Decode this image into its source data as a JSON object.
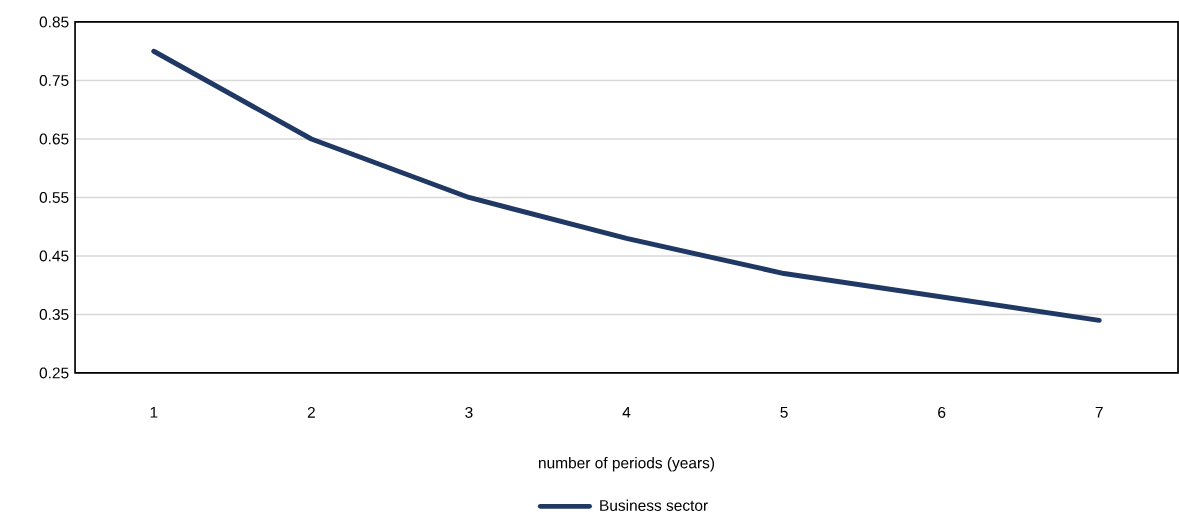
{
  "chart_data": {
    "type": "line",
    "xlabel": "number of periods (years)",
    "categories": [
      "1",
      "2",
      "3",
      "4",
      "5",
      "6",
      "7"
    ],
    "series": [
      {
        "name": "Business sector",
        "color": "#203864",
        "values": [
          0.8,
          0.65,
          0.55,
          0.48,
          0.42,
          0.38,
          0.34
        ]
      }
    ],
    "ylim": [
      0.25,
      0.85
    ],
    "yticks": [
      0.25,
      0.35,
      0.45,
      0.55,
      0.65,
      0.75,
      0.85
    ],
    "grid": "y",
    "legend": "bottom",
    "marker": "none",
    "line_style": "solid"
  }
}
